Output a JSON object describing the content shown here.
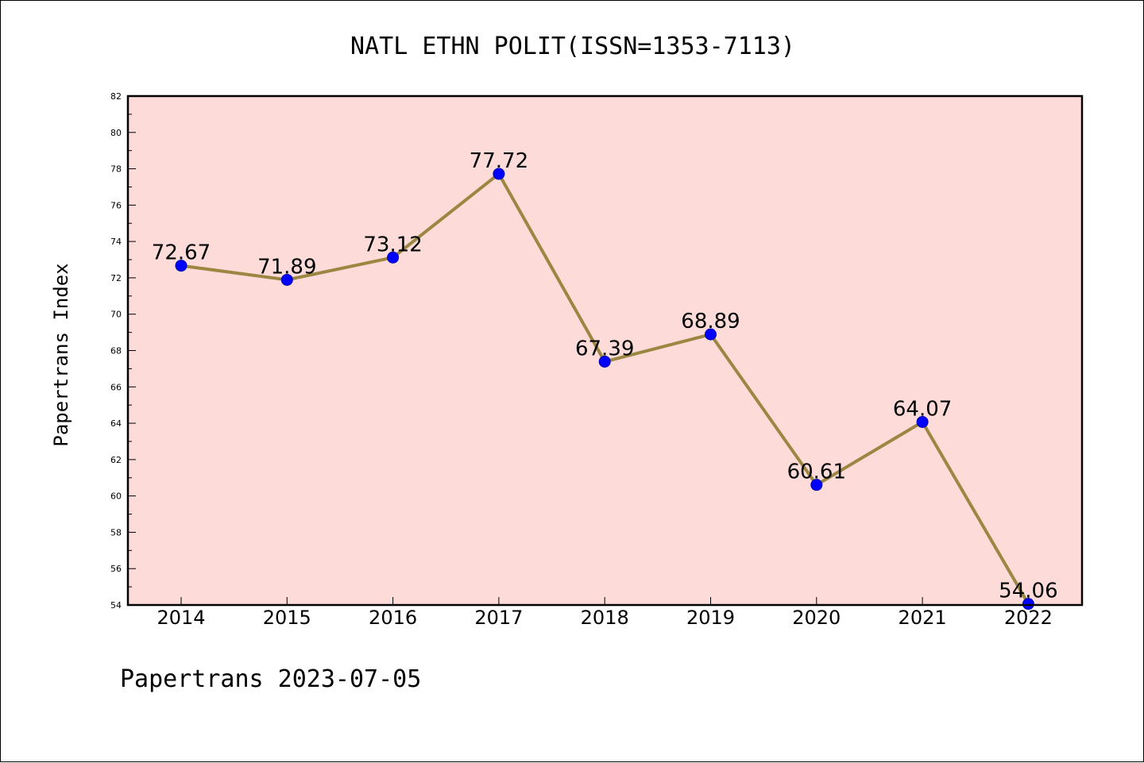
{
  "chart_data": {
    "type": "line",
    "title": "NATL ETHN POLIT(ISSN=1353-7113)",
    "xlabel": "",
    "ylabel": "Papertrans Index",
    "categories": [
      "2014",
      "2015",
      "2016",
      "2017",
      "2018",
      "2019",
      "2020",
      "2021",
      "2022"
    ],
    "series": [
      {
        "values": [
          72.67,
          71.89,
          73.12,
          77.72,
          67.39,
          68.89,
          60.61,
          64.07,
          54.06
        ],
        "data_labels": [
          "72.67",
          "71.89",
          "73.12",
          "77.72",
          "67.39",
          "68.89",
          "60.61",
          "64.07",
          "54.06"
        ],
        "line_color": "#9b8642",
        "marker_color": "#0000ff"
      }
    ],
    "ylim": [
      54,
      82
    ],
    "yticks": [
      54,
      56,
      58,
      60,
      62,
      64,
      66,
      68,
      70,
      72,
      74,
      76,
      78,
      80,
      82
    ],
    "grid": false,
    "plot_background": "#fddbd9"
  },
  "footer": "Papertrans 2023-07-05"
}
